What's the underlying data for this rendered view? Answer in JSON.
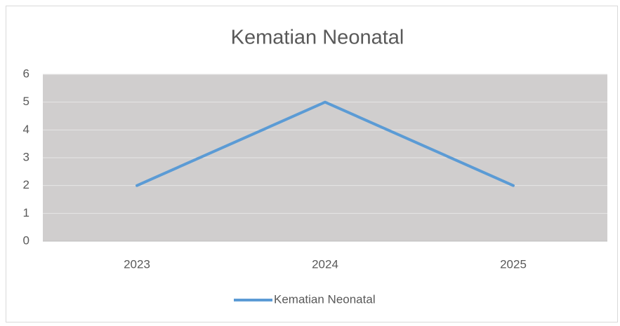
{
  "chart_data": {
    "type": "line",
    "title": "Kematian Neonatal",
    "categories": [
      "2023",
      "2024",
      "2025"
    ],
    "series": [
      {
        "name": "Kematian Neonatal",
        "color": "#5b9bd5",
        "values": [
          2,
          5,
          2
        ]
      }
    ],
    "ylim": [
      0,
      6
    ],
    "yticks": [
      0,
      1,
      2,
      3,
      4,
      5,
      6
    ],
    "grid": true,
    "legend": "bottom"
  }
}
